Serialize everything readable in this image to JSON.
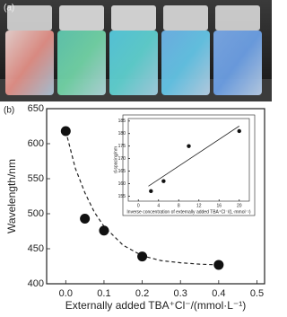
{
  "panel_labels": [
    "(a)",
    "(b)"
  ],
  "chart_data": [
    {
      "type": "scatter",
      "x_label": "Externally added TBA⁺Cl⁻/(mmol·L⁻¹)",
      "y_label": "Wavelength/nm",
      "x": [
        0,
        0.05,
        0.1,
        0.2,
        0.4
      ],
      "values": [
        618,
        493,
        476,
        439,
        427
      ],
      "color": "#111111",
      "fit": {
        "style": "dashed",
        "x": [
          0,
          0.025,
          0.05,
          0.075,
          0.1,
          0.15,
          0.2,
          0.25,
          0.3,
          0.35,
          0.4
        ],
        "values": [
          618,
          565,
          530,
          502,
          482,
          455,
          440,
          433,
          430,
          428,
          427
        ]
      },
      "xlim": [
        -0.05,
        0.52
      ],
      "xticks": [
        {
          "value": 0,
          "label": "0.0"
        },
        0.1,
        0.2,
        0.3,
        0.4,
        0.5
      ],
      "ylim": [
        400,
        650
      ],
      "yticks": [
        400,
        450,
        500,
        550,
        600,
        650
      ]
    },
    {
      "type": "scatter",
      "x_label": "Inverse concentration of externally added TBA⁺Cl⁻/(L·mmol⁻¹)",
      "y_label": "d-spacing/nm",
      "x": [
        2.5,
        5,
        10,
        20
      ],
      "values": [
        157,
        161,
        175,
        181
      ],
      "color": "#111111",
      "fit": {
        "style": "solid",
        "x": [
          2,
          20
        ],
        "values": [
          159,
          183
        ]
      },
      "xlim": [
        -2,
        22
      ],
      "xticks": [
        0,
        4,
        8,
        12,
        16,
        20
      ],
      "ylim": [
        153,
        186
      ],
      "yticks": [
        155,
        160,
        165,
        170,
        175,
        180,
        185
      ]
    }
  ]
}
